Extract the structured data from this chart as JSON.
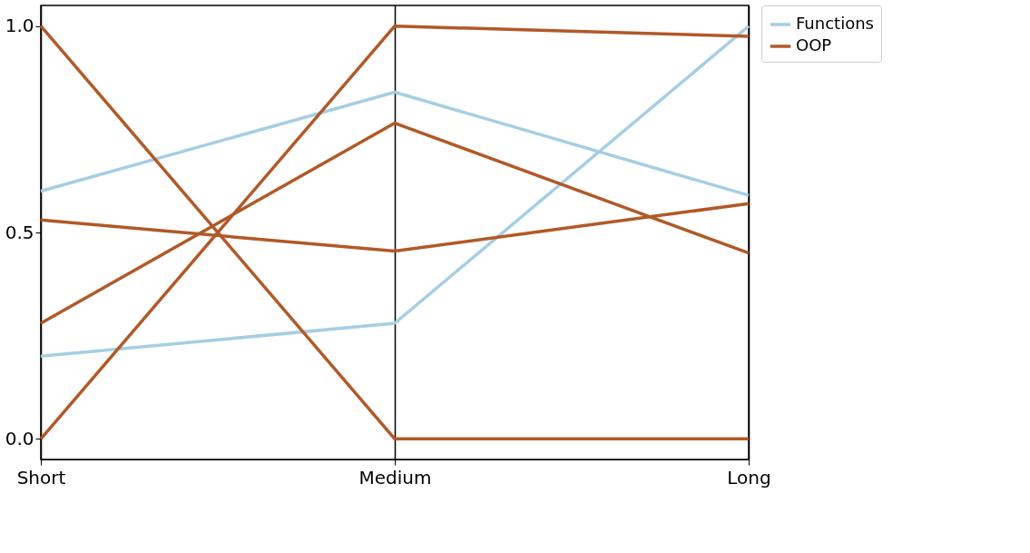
{
  "chart_data": {
    "type": "line",
    "categories": [
      "Short",
      "Medium",
      "Long"
    ],
    "series": [
      {
        "name": "Functions",
        "color": "#a6cee3",
        "values": [
          0.6,
          0.84,
          0.59
        ]
      },
      {
        "color": "#a6cee3",
        "values": [
          0.2,
          0.28,
          1.0
        ]
      },
      {
        "name": "OOP",
        "color": "#b15928",
        "values": [
          1.0,
          0.0,
          0.0
        ]
      },
      {
        "color": "#b15928",
        "values": [
          0.53,
          0.455,
          0.57
        ]
      },
      {
        "color": "#b15928",
        "values": [
          0.28,
          0.765,
          0.45
        ]
      },
      {
        "color": "#b15928",
        "values": [
          0.0,
          1.0,
          0.975
        ]
      }
    ],
    "ylim": [
      -0.05,
      1.05
    ],
    "yticks": [
      {
        "value": 0,
        "label": "0.0"
      },
      {
        "value": 0.5,
        "label": "0.5"
      },
      {
        "value": 1,
        "label": "1.0"
      }
    ],
    "grid": "x",
    "legend": "top right",
    "marker": "none",
    "line_style": "solid"
  }
}
